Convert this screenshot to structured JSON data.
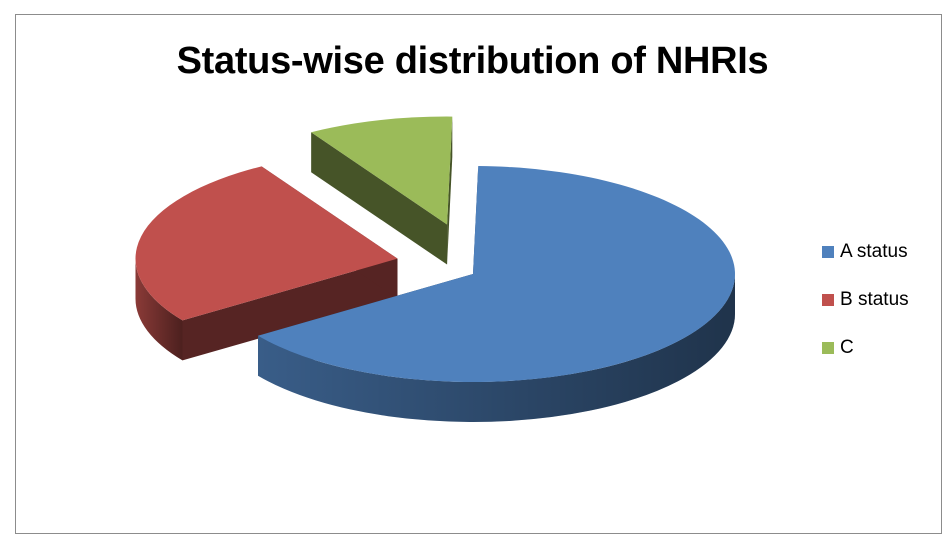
{
  "chart_data": {
    "type": "pie",
    "style": "3d-exploded",
    "title": "Status-wise distribution of NHRIs",
    "categories": [
      "A status",
      "B status",
      "C"
    ],
    "values": [
      65,
      26,
      9
    ],
    "colors": [
      "#4f81bd",
      "#c0504d",
      "#9bbb59"
    ],
    "legend_position": "right"
  }
}
